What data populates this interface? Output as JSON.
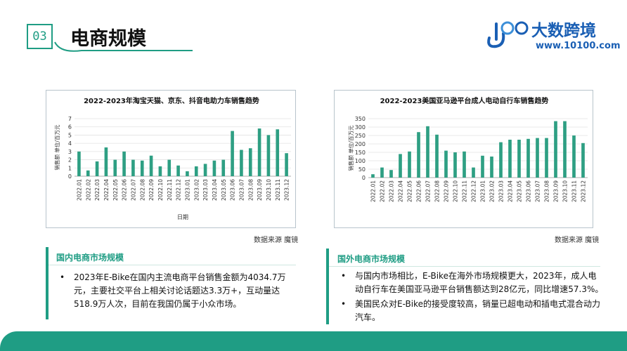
{
  "header": {
    "number": "03",
    "title": "电商规模"
  },
  "logo": {
    "name": "大数跨境",
    "url": "www.10100.com",
    "mark": "1000-logo-icon"
  },
  "colors": {
    "accent": "#1f9d84",
    "bar": "#2e9f83",
    "brand_blue": "#1a5fb4"
  },
  "source_label": "数据来源  魔镜",
  "domestic": {
    "title": "国内电商市场规模",
    "bullets": [
      "2023年E-Bike在国内主流电商平台销售金额为4034.7万元，主要社交平台上相关讨论话题达3.3万+，互动量达518.9万人次，目前在我国仍属于小众市场。"
    ]
  },
  "overseas": {
    "title": "国外电商市场规模",
    "bullets": [
      "与国内市场相比，E-Bike在海外市场规模更大，2023年，成人电动自行车在美国亚马逊平台销售额达到28亿元，同比增速57.3%。",
      "美国民众对E-Bike的接受度较高，销量已超电动和插电式混合动力汽车。"
    ]
  },
  "chart_data": [
    {
      "type": "bar",
      "title": "2022-2023年淘宝天猫、京东、抖音电助力车销售趋势",
      "xlabel": "日期",
      "ylabel": "销售额  单位/百万元",
      "ylim": [
        0,
        7
      ],
      "yticks": [
        0,
        1,
        2,
        3,
        4,
        5,
        6,
        7
      ],
      "categories": [
        "2022.01",
        "2022.02",
        "2022.03",
        "2022.04",
        "2022.05",
        "2022.06",
        "2022.07",
        "2022.08",
        "2022.09",
        "2022.10",
        "2022.11",
        "2022.12",
        "2023.01",
        "2023.02",
        "2023.03",
        "2023.04",
        "2023.05",
        "2023.06",
        "2023.07",
        "2023.08",
        "2023.09",
        "2023.10",
        "2023.11",
        "2023.12"
      ],
      "values": [
        3.0,
        0.7,
        1.8,
        3.5,
        2.0,
        3.0,
        2.0,
        1.9,
        2.5,
        1.2,
        2.0,
        1.3,
        0.6,
        1.2,
        1.5,
        1.9,
        2.0,
        5.5,
        3.2,
        3.4,
        5.8,
        5.0,
        5.7,
        2.8
      ],
      "grid": true,
      "legend": "none"
    },
    {
      "type": "bar",
      "title": "2022-2023美国亚马逊平台成人电动自行车销售趋势",
      "xlabel": "",
      "ylabel": "销售额  单位/百万元",
      "ylim": [
        0,
        350
      ],
      "yticks": [
        0,
        50,
        100,
        150,
        200,
        250,
        300,
        350
      ],
      "categories": [
        "2022.01",
        "2022.02",
        "2022.03",
        "2022.04",
        "2022.05",
        "2022.06",
        "2022.07",
        "2022.08",
        "2022.09",
        "2022.10",
        "2022.11",
        "2022.12",
        "2023.01",
        "2023.02",
        "2023.03",
        "2023.04",
        "2023.05",
        "2023.06",
        "2023.07",
        "2023.08",
        "2023.09",
        "2023.10",
        "2023.11",
        "2023.12"
      ],
      "values": [
        20,
        60,
        45,
        140,
        155,
        270,
        305,
        255,
        160,
        150,
        155,
        60,
        130,
        125,
        210,
        225,
        225,
        230,
        235,
        235,
        335,
        335,
        250,
        205
      ],
      "grid": true,
      "legend": "none"
    }
  ]
}
